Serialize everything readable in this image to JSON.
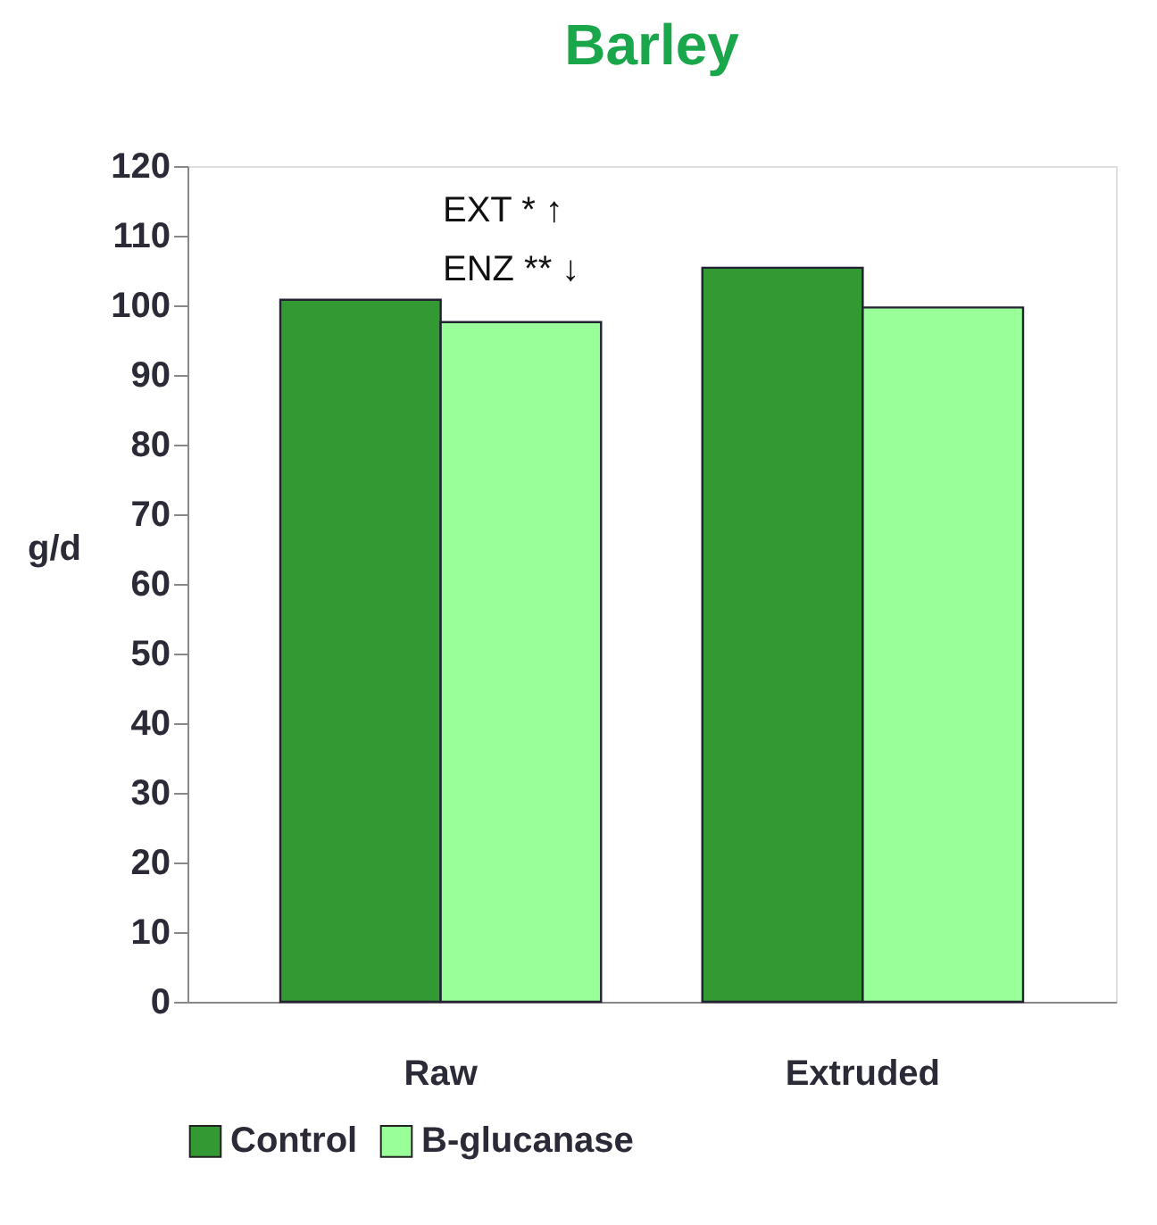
{
  "chart_data": {
    "type": "bar",
    "title": "Barley",
    "ylabel": "g/d",
    "categories": [
      "Raw",
      "Extruded"
    ],
    "series": [
      {
        "name": "Control",
        "color": "#339933",
        "values": [
          100.8,
          105.4
        ]
      },
      {
        "name": "B-glucanase",
        "color": "#99ff99",
        "values": [
          97.6,
          99.7
        ]
      }
    ],
    "ylim": [
      0,
      120
    ],
    "yticks": [
      0,
      10,
      20,
      30,
      40,
      50,
      60,
      70,
      80,
      90,
      100,
      110,
      120
    ],
    "annotations": [
      "EXT * ↑",
      "ENZ ** ↓"
    ],
    "grid": false,
    "legend": "bottom"
  }
}
